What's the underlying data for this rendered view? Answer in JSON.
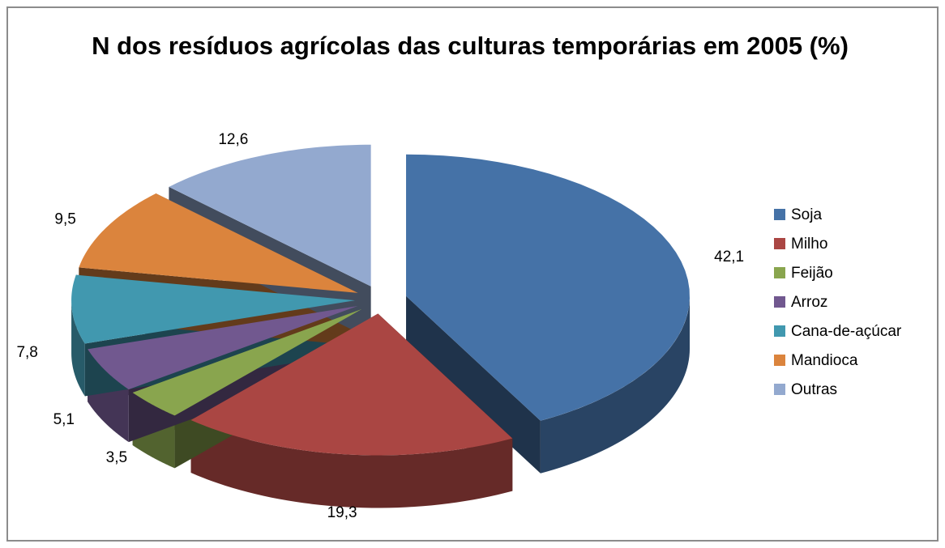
{
  "chart_data": {
    "type": "pie",
    "title": "N dos resíduos agrícolas das culturas temporárias em 2005 (%)",
    "categories": [
      "Soja",
      "Milho",
      "Feijão",
      "Arroz",
      "Cana-de-açúcar",
      "Mandioca",
      "Outras"
    ],
    "values": [
      42.1,
      19.3,
      3.5,
      5.1,
      7.8,
      9.5,
      12.6
    ],
    "value_labels": [
      "42,1",
      "19,3",
      "3,5",
      "5,1",
      "7,8",
      "9,5",
      "12,6"
    ],
    "colors": [
      "#4572a7",
      "#aa4643",
      "#89a54e",
      "#71588f",
      "#4198af",
      "#db843d",
      "#93a9cf"
    ],
    "legend": "right"
  }
}
